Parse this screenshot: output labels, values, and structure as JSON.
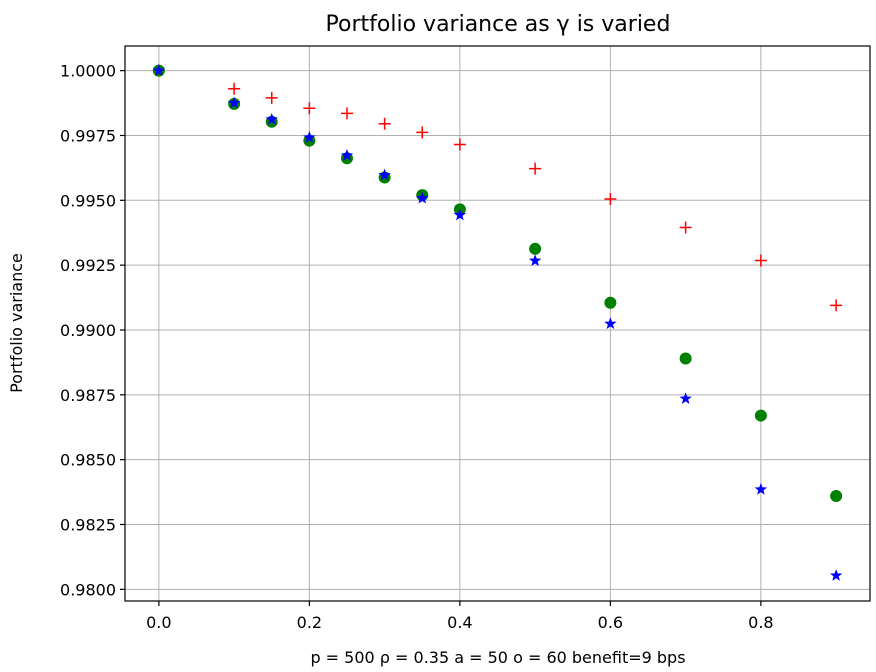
{
  "chart_data": {
    "type": "scatter",
    "title": "Portfolio variance as γ is varied",
    "xlabel": "p = 500 ρ = 0.35 a = 50 o = 60  benefit=9 bps",
    "ylabel": "Portfolio variance",
    "xlim": [
      -0.045,
      0.945
    ],
    "ylim": [
      0.97955,
      1.00095
    ],
    "x_ticks": [
      0.0,
      0.2,
      0.4,
      0.6,
      0.8
    ],
    "x_tick_labels": [
      "0.0",
      "0.2",
      "0.4",
      "0.6",
      "0.8"
    ],
    "y_ticks": [
      0.98,
      0.9825,
      0.985,
      0.9875,
      0.99,
      0.9925,
      0.995,
      0.9975,
      1.0
    ],
    "y_tick_labels": [
      "0.9800",
      "0.9825",
      "0.9850",
      "0.9875",
      "0.9900",
      "0.9925",
      "0.9950",
      "0.9975",
      "1.0000"
    ],
    "grid": true,
    "series": [
      {
        "marker": "plus",
        "color": "#ff0000",
        "x": [
          0.0,
          0.1,
          0.15,
          0.2,
          0.25,
          0.3,
          0.35,
          0.4,
          0.5,
          0.6,
          0.7,
          0.8,
          0.9
        ],
        "y": [
          1.0,
          0.9993,
          0.99895,
          0.99855,
          0.99835,
          0.99795,
          0.99762,
          0.99715,
          0.99622,
          0.99505,
          0.99395,
          0.99268,
          0.99095
        ]
      },
      {
        "marker": "circle",
        "color": "#008000",
        "x": [
          0.0,
          0.1,
          0.15,
          0.2,
          0.25,
          0.3,
          0.35,
          0.4,
          0.5,
          0.6,
          0.7,
          0.8,
          0.9
        ],
        "y": [
          1.0,
          0.99872,
          0.99803,
          0.9973,
          0.99662,
          0.99588,
          0.9952,
          0.99465,
          0.99313,
          0.99105,
          0.9889,
          0.9867,
          0.9836
        ]
      },
      {
        "marker": "star",
        "color": "#0000ff",
        "x": [
          0.0,
          0.1,
          0.15,
          0.2,
          0.25,
          0.3,
          0.35,
          0.4,
          0.5,
          0.6,
          0.7,
          0.8,
          0.9
        ],
        "y": [
          1.0,
          0.99875,
          0.99812,
          0.99742,
          0.99673,
          0.99597,
          0.99508,
          0.99443,
          0.99267,
          0.99024,
          0.98735,
          0.98385,
          0.98053
        ]
      }
    ]
  }
}
